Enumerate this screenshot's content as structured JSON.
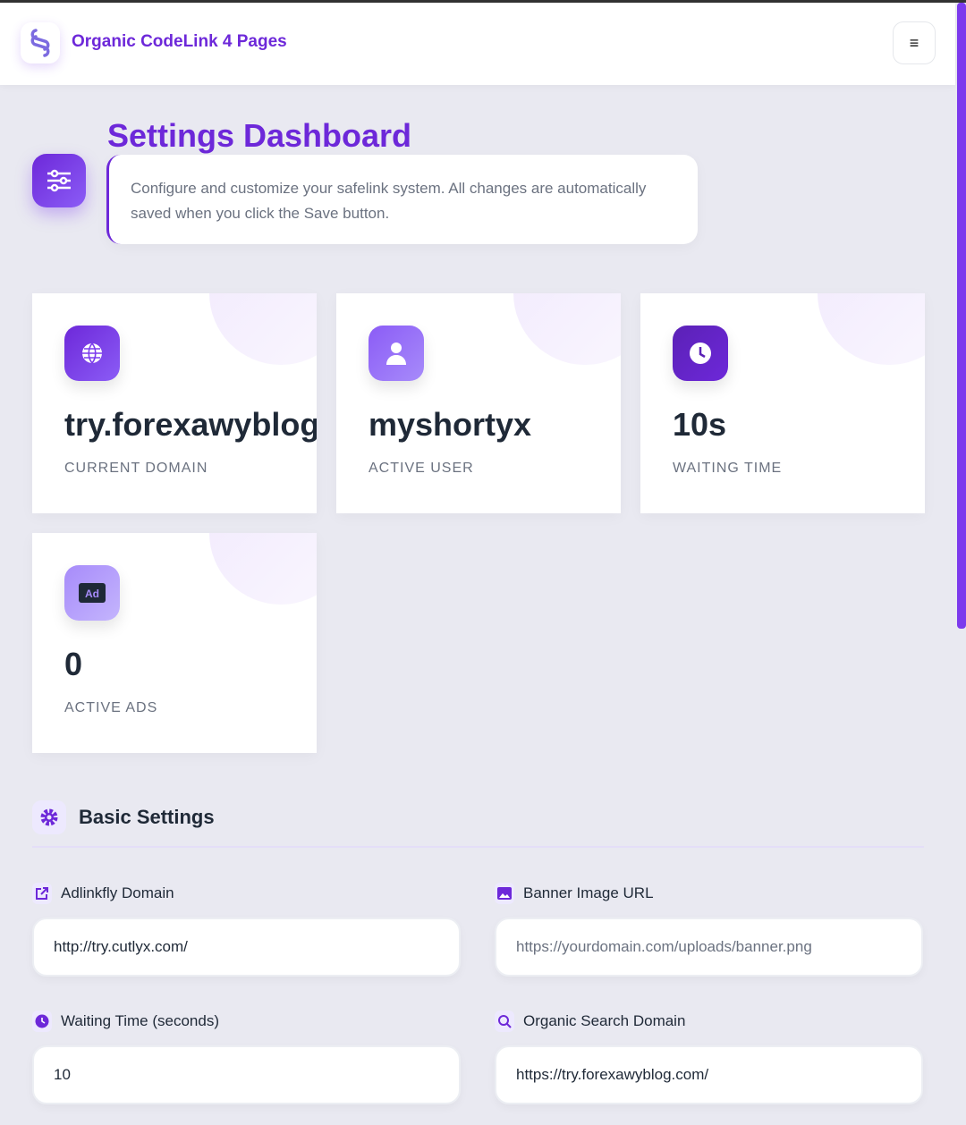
{
  "header": {
    "brand": "Organic CodeLink 4 Pages",
    "menu_icon": "hamburger-icon",
    "menu_glyph": "≡"
  },
  "page": {
    "title": "Settings Dashboard",
    "description": "Configure and customize your safelink system. All changes are automatically saved when you click the Save button."
  },
  "stats": [
    {
      "value": "try.forexawyblog.com",
      "label": "CURRENT DOMAIN",
      "icon": "globe-icon"
    },
    {
      "value": "myshortyx",
      "label": "ACTIVE USER",
      "icon": "user-icon"
    },
    {
      "value": "10s",
      "label": "WAITING TIME",
      "icon": "clock-icon"
    },
    {
      "value": "0",
      "label": "ACTIVE ADS",
      "icon": "ad-icon"
    }
  ],
  "basic": {
    "title": "Basic Settings",
    "fields": [
      {
        "label": "Adlinkfly Domain",
        "value": "http://try.cutlyx.com/",
        "placeholder": ""
      },
      {
        "label": "Banner Image URL",
        "value": "",
        "placeholder": "https://yourdomain.com/uploads/banner.png"
      },
      {
        "label": "Waiting Time (seconds)",
        "value": "10",
        "placeholder": ""
      },
      {
        "label": "Organic Search Domain",
        "value": "https://try.forexawyblog.com/",
        "placeholder": ""
      }
    ]
  },
  "colors": {
    "accent": "#6d28d9",
    "background": "#f5f6fa"
  }
}
